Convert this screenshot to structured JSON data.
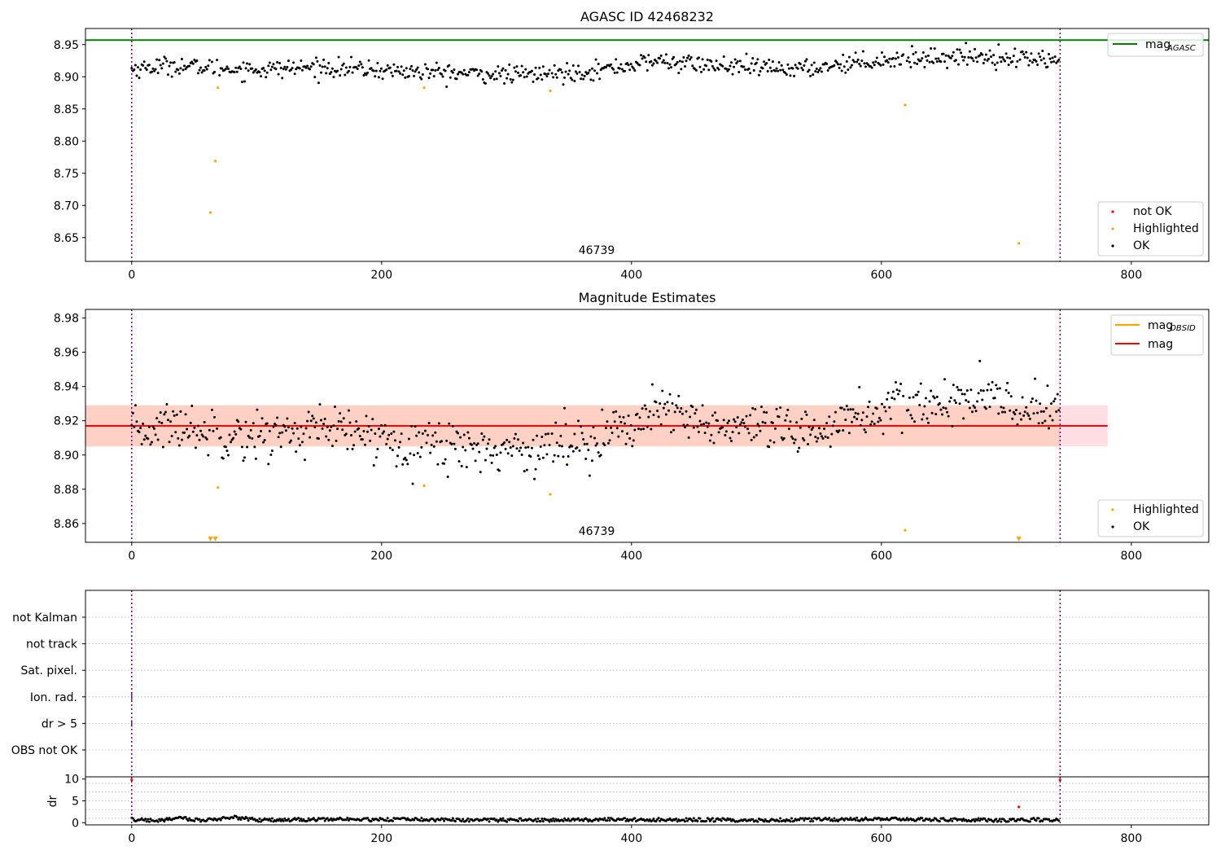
{
  "chart_data": [
    {
      "type": "scatter",
      "title": "AGASC ID 42468232",
      "annotation": "46739",
      "xlim": [
        -37,
        862
      ],
      "ylim": [
        8.613,
        8.975
      ],
      "xticks": [
        0,
        200,
        400,
        600,
        800
      ],
      "yticks": [
        8.65,
        8.7,
        8.75,
        8.8,
        8.85,
        8.9,
        8.95
      ],
      "ytick_labels": [
        "8.65",
        "8.70",
        "8.75",
        "8.80",
        "8.85",
        "8.90",
        "8.95"
      ],
      "vlines": [
        0,
        743
      ],
      "hlines": [
        {
          "name": "mag_AGASC",
          "y": 8.957,
          "color": "#008000"
        }
      ],
      "series": [
        {
          "name": "not OK",
          "color": "#ff0000",
          "points": []
        },
        {
          "name": "Highlighted",
          "color": "#ffa500",
          "points": [
            [
              63,
              8.689
            ],
            [
              67,
              8.769
            ],
            [
              69,
              8.883
            ],
            [
              234,
              8.883
            ],
            [
              335,
              8.878
            ],
            [
              619,
              8.856
            ],
            [
              710,
              8.641
            ]
          ]
        },
        {
          "name": "OK",
          "color": "#000000",
          "trend": [
            [
              0,
              8.912
            ],
            [
              30,
              8.918
            ],
            [
              60,
              8.914
            ],
            [
              100,
              8.911
            ],
            [
              150,
              8.915
            ],
            [
              200,
              8.91
            ],
            [
              250,
              8.906
            ],
            [
              300,
              8.903
            ],
            [
              340,
              8.905
            ],
            [
              380,
              8.912
            ],
            [
              420,
              8.925
            ],
            [
              460,
              8.918
            ],
            [
              500,
              8.914
            ],
            [
              540,
              8.912
            ],
            [
              570,
              8.921
            ],
            [
              600,
              8.926
            ],
            [
              640,
              8.93
            ],
            [
              680,
              8.932
            ],
            [
              740,
              8.926
            ]
          ],
          "spread": 0.007,
          "count": 740
        }
      ],
      "legends": [
        {
          "position": "top-right",
          "entries": [
            {
              "label": "mag",
              "sub": "AGASC",
              "kind": "line",
              "color": "#008000"
            }
          ]
        },
        {
          "position": "bottom-right",
          "entries": [
            {
              "label": "not OK",
              "kind": "dot",
              "color": "#ff0000"
            },
            {
              "label": "Highlighted",
              "kind": "dot",
              "color": "#ffa500"
            },
            {
              "label": "OK",
              "kind": "dot",
              "color": "#000000"
            }
          ]
        }
      ]
    },
    {
      "type": "scatter",
      "title": "Magnitude Estimates",
      "annotation": "46739",
      "xlim": [
        -37,
        862
      ],
      "ylim": [
        8.849,
        8.985
      ],
      "xticks": [
        0,
        200,
        400,
        600,
        800
      ],
      "yticks": [
        8.86,
        8.88,
        8.9,
        8.92,
        8.94,
        8.96,
        8.98
      ],
      "ytick_labels": [
        "8.86",
        "8.88",
        "8.90",
        "8.92",
        "8.94",
        "8.96",
        "8.98"
      ],
      "vlines": [
        0,
        743
      ],
      "hlines": [
        {
          "name": "mag_OBSID",
          "y": 8.917,
          "color": "#ffa500",
          "x_range": [
            -37,
            743
          ]
        },
        {
          "name": "mag",
          "y": 8.917,
          "color": "#ff0000",
          "x_range": [
            -37,
            781
          ]
        }
      ],
      "bands": [
        {
          "y": [
            8.905,
            8.929
          ],
          "x_range": [
            -37,
            781
          ],
          "color": "#ffb6c1"
        },
        {
          "y": [
            8.905,
            8.929
          ],
          "x_range": [
            -37,
            743
          ],
          "color": "#ffc0a0"
        }
      ],
      "series": [
        {
          "name": "Highlighted",
          "color": "#ffa500",
          "points": [
            [
              69,
              8.881
            ],
            [
              234,
              8.882
            ],
            [
              335,
              8.877
            ],
            [
              619,
              8.856
            ]
          ],
          "offscale": [
            [
              63,
              8.85
            ],
            [
              67,
              8.85
            ],
            [
              710,
              8.85
            ]
          ]
        },
        {
          "name": "OK",
          "color": "#000000",
          "trend": [
            [
              0,
              8.912
            ],
            [
              30,
              8.918
            ],
            [
              60,
              8.914
            ],
            [
              100,
              8.911
            ],
            [
              150,
              8.915
            ],
            [
              200,
              8.91
            ],
            [
              250,
              8.906
            ],
            [
              300,
              8.903
            ],
            [
              340,
              8.905
            ],
            [
              380,
              8.912
            ],
            [
              420,
              8.925
            ],
            [
              460,
              8.918
            ],
            [
              500,
              8.914
            ],
            [
              540,
              8.912
            ],
            [
              570,
              8.921
            ],
            [
              600,
              8.926
            ],
            [
              640,
              8.93
            ],
            [
              680,
              8.932
            ],
            [
              740,
              8.926
            ]
          ],
          "spread": 0.007,
          "count": 740
        }
      ],
      "legends": [
        {
          "position": "top-right",
          "entries": [
            {
              "label": "mag",
              "sub": "OBSID",
              "kind": "line",
              "color": "#ffa500"
            },
            {
              "label": "mag",
              "kind": "line",
              "color": "#ff0000"
            }
          ]
        },
        {
          "position": "bottom-right",
          "entries": [
            {
              "label": "Highlighted",
              "kind": "dot",
              "color": "#ffa500"
            },
            {
              "label": "OK",
              "kind": "dot",
              "color": "#000000"
            }
          ]
        }
      ]
    },
    {
      "type": "scatter",
      "title": "",
      "xlim": [
        -37,
        862
      ],
      "categories": [
        "not Kalman",
        "not track",
        "Sat. pixel.",
        "Ion. rad.",
        "dr > 5",
        "OBS not OK"
      ],
      "vlines": [
        0,
        743
      ],
      "flag_marks": [
        {
          "category": "Ion. rad.",
          "x": 0
        },
        {
          "category": "dr > 5",
          "x": 0
        }
      ]
    },
    {
      "type": "scatter",
      "title": "",
      "ylabel": "dr",
      "xlim": [
        -37,
        862
      ],
      "ylim": [
        -0.5,
        10.5
      ],
      "xticks": [
        0,
        200,
        400,
        600,
        800
      ],
      "yticks": [
        0,
        5,
        10
      ],
      "ytick_labels": [
        "0",
        "5",
        "10"
      ],
      "vlines": [
        0,
        743
      ],
      "series": [
        {
          "name": "dr",
          "color": "#000000",
          "trend": [
            [
              0,
              0.7
            ],
            [
              20,
              0.5
            ],
            [
              40,
              1.0
            ],
            [
              60,
              0.5
            ],
            [
              80,
              1.3
            ],
            [
              100,
              0.6
            ],
            [
              160,
              0.8
            ],
            [
              220,
              0.7
            ],
            [
              300,
              0.6
            ],
            [
              400,
              0.7
            ],
            [
              500,
              0.6
            ],
            [
              600,
              0.8
            ],
            [
              700,
              0.6
            ],
            [
              740,
              0.7
            ]
          ],
          "spread": 0.4,
          "count": 740
        },
        {
          "name": "dr high",
          "color": "#ff0000",
          "points": [
            [
              0,
              9.8
            ],
            [
              710,
              3.6
            ],
            [
              743,
              9.8
            ]
          ]
        }
      ]
    }
  ]
}
